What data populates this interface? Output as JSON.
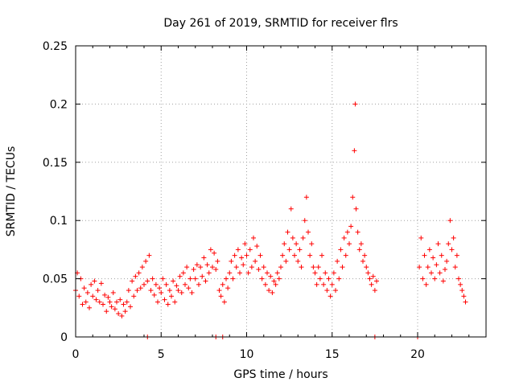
{
  "chart_data": {
    "type": "scatter",
    "title": "Day 261 of 2019, SRMTID for receiver flrs",
    "xlabel": "GPS time / hours",
    "ylabel": "SRMTID / TECUs",
    "xlim": [
      0,
      24
    ],
    "ylim": [
      0,
      0.25
    ],
    "xticks": [
      0,
      5,
      10,
      15,
      20
    ],
    "xtick_labels": [
      "0",
      "5",
      "10",
      "15",
      "20"
    ],
    "yticks": [
      0,
      0.05,
      0.1,
      0.15,
      0.2,
      0.25
    ],
    "ytick_labels": [
      "0",
      "0.05",
      "0.1",
      "0.15",
      "0.2",
      "0.25"
    ],
    "grid": true,
    "legend": "none",
    "marker": "+",
    "series_color": "#ff0000",
    "series": [
      {
        "values": [
          [
            0.0,
            0.04
          ],
          [
            0.1,
            0.055
          ],
          [
            0.2,
            0.035
          ],
          [
            0.3,
            0.05
          ],
          [
            0.4,
            0.028
          ],
          [
            0.5,
            0.042
          ],
          [
            0.6,
            0.03
          ],
          [
            0.7,
            0.038
          ],
          [
            0.8,
            0.025
          ],
          [
            0.9,
            0.045
          ],
          [
            1.0,
            0.035
          ],
          [
            1.1,
            0.048
          ],
          [
            1.2,
            0.032
          ],
          [
            1.3,
            0.04
          ],
          [
            1.4,
            0.03
          ],
          [
            1.5,
            0.046
          ],
          [
            1.6,
            0.028
          ],
          [
            1.7,
            0.036
          ],
          [
            1.8,
            0.022
          ],
          [
            1.9,
            0.034
          ],
          [
            2.0,
            0.03
          ],
          [
            2.1,
            0.026
          ],
          [
            2.2,
            0.038
          ],
          [
            2.3,
            0.024
          ],
          [
            2.4,
            0.03
          ],
          [
            2.5,
            0.02
          ],
          [
            2.6,
            0.032
          ],
          [
            2.7,
            0.018
          ],
          [
            2.8,
            0.028
          ],
          [
            2.9,
            0.022
          ],
          [
            3.0,
            0.03
          ],
          [
            3.1,
            0.04
          ],
          [
            3.2,
            0.026
          ],
          [
            3.3,
            0.048
          ],
          [
            3.4,
            0.035
          ],
          [
            3.5,
            0.052
          ],
          [
            3.6,
            0.04
          ],
          [
            3.7,
            0.055
          ],
          [
            3.8,
            0.042
          ],
          [
            3.9,
            0.06
          ],
          [
            4.0,
            0.045
          ],
          [
            4.1,
            0.065
          ],
          [
            4.2,
            0.048
          ],
          [
            4.3,
            0.07
          ],
          [
            4.4,
            0.04
          ],
          [
            4.5,
            0.05
          ],
          [
            4.6,
            0.036
          ],
          [
            4.7,
            0.045
          ],
          [
            4.8,
            0.03
          ],
          [
            4.9,
            0.042
          ],
          [
            5.0,
            0.038
          ],
          [
            5.1,
            0.05
          ],
          [
            5.2,
            0.032
          ],
          [
            5.3,
            0.045
          ],
          [
            5.4,
            0.028
          ],
          [
            5.5,
            0.04
          ],
          [
            5.6,
            0.035
          ],
          [
            5.7,
            0.048
          ],
          [
            5.8,
            0.03
          ],
          [
            5.9,
            0.044
          ],
          [
            6.0,
            0.04
          ],
          [
            6.1,
            0.052
          ],
          [
            6.2,
            0.038
          ],
          [
            6.3,
            0.055
          ],
          [
            6.4,
            0.045
          ],
          [
            6.5,
            0.06
          ],
          [
            6.6,
            0.042
          ],
          [
            6.7,
            0.05
          ],
          [
            6.8,
            0.038
          ],
          [
            6.9,
            0.058
          ],
          [
            7.0,
            0.05
          ],
          [
            7.1,
            0.062
          ],
          [
            7.2,
            0.045
          ],
          [
            7.3,
            0.06
          ],
          [
            7.4,
            0.052
          ],
          [
            7.5,
            0.068
          ],
          [
            7.6,
            0.048
          ],
          [
            7.7,
            0.062
          ],
          [
            7.8,
            0.055
          ],
          [
            7.9,
            0.075
          ],
          [
            8.0,
            0.06
          ],
          [
            8.1,
            0.072
          ],
          [
            8.2,
            0.058
          ],
          [
            8.3,
            0.065
          ],
          [
            8.4,
            0.04
          ],
          [
            8.5,
            0.035
          ],
          [
            8.6,
            0.045
          ],
          [
            8.7,
            0.03
          ],
          [
            8.8,
            0.05
          ],
          [
            8.9,
            0.042
          ],
          [
            9.0,
            0.055
          ],
          [
            9.1,
            0.065
          ],
          [
            9.2,
            0.05
          ],
          [
            9.3,
            0.07
          ],
          [
            9.4,
            0.06
          ],
          [
            9.5,
            0.075
          ],
          [
            9.6,
            0.055
          ],
          [
            9.7,
            0.068
          ],
          [
            9.8,
            0.062
          ],
          [
            9.9,
            0.08
          ],
          [
            10.0,
            0.07
          ],
          [
            10.1,
            0.055
          ],
          [
            10.2,
            0.075
          ],
          [
            10.3,
            0.06
          ],
          [
            10.4,
            0.085
          ],
          [
            10.5,
            0.065
          ],
          [
            10.6,
            0.078
          ],
          [
            10.7,
            0.058
          ],
          [
            10.8,
            0.07
          ],
          [
            10.9,
            0.05
          ],
          [
            11.0,
            0.06
          ],
          [
            11.1,
            0.045
          ],
          [
            11.2,
            0.055
          ],
          [
            11.3,
            0.04
          ],
          [
            11.4,
            0.052
          ],
          [
            11.5,
            0.038
          ],
          [
            11.6,
            0.048
          ],
          [
            11.7,
            0.045
          ],
          [
            11.8,
            0.055
          ],
          [
            11.9,
            0.05
          ],
          [
            12.0,
            0.06
          ],
          [
            12.1,
            0.07
          ],
          [
            12.2,
            0.08
          ],
          [
            12.3,
            0.065
          ],
          [
            12.4,
            0.09
          ],
          [
            12.5,
            0.075
          ],
          [
            12.6,
            0.11
          ],
          [
            12.7,
            0.085
          ],
          [
            12.8,
            0.07
          ],
          [
            12.9,
            0.08
          ],
          [
            13.0,
            0.065
          ],
          [
            13.1,
            0.075
          ],
          [
            13.2,
            0.06
          ],
          [
            13.3,
            0.085
          ],
          [
            13.4,
            0.1
          ],
          [
            13.5,
            0.12
          ],
          [
            13.6,
            0.09
          ],
          [
            13.7,
            0.07
          ],
          [
            13.8,
            0.08
          ],
          [
            13.9,
            0.06
          ],
          [
            14.0,
            0.055
          ],
          [
            14.1,
            0.045
          ],
          [
            14.2,
            0.06
          ],
          [
            14.3,
            0.05
          ],
          [
            14.4,
            0.07
          ],
          [
            14.5,
            0.045
          ],
          [
            14.6,
            0.055
          ],
          [
            14.7,
            0.04
          ],
          [
            14.8,
            0.05
          ],
          [
            14.9,
            0.035
          ],
          [
            15.0,
            0.045
          ],
          [
            15.1,
            0.055
          ],
          [
            15.2,
            0.04
          ],
          [
            15.3,
            0.065
          ],
          [
            15.4,
            0.05
          ],
          [
            15.5,
            0.075
          ],
          [
            15.6,
            0.06
          ],
          [
            15.7,
            0.085
          ],
          [
            15.8,
            0.07
          ],
          [
            15.9,
            0.09
          ],
          [
            16.0,
            0.08
          ],
          [
            16.1,
            0.095
          ],
          [
            16.2,
            0.12
          ],
          [
            16.3,
            0.16
          ],
          [
            16.35,
            0.2
          ],
          [
            16.4,
            0.11
          ],
          [
            16.5,
            0.09
          ],
          [
            16.6,
            0.075
          ],
          [
            16.7,
            0.08
          ],
          [
            16.8,
            0.065
          ],
          [
            16.9,
            0.07
          ],
          [
            17.0,
            0.06
          ],
          [
            17.1,
            0.055
          ],
          [
            17.2,
            0.05
          ],
          [
            17.3,
            0.045
          ],
          [
            17.4,
            0.052
          ],
          [
            17.5,
            0.04
          ],
          [
            17.6,
            0.048
          ],
          [
            20.1,
            0.06
          ],
          [
            20.2,
            0.085
          ],
          [
            20.3,
            0.05
          ],
          [
            20.4,
            0.07
          ],
          [
            20.5,
            0.045
          ],
          [
            20.6,
            0.06
          ],
          [
            20.7,
            0.075
          ],
          [
            20.8,
            0.055
          ],
          [
            20.9,
            0.068
          ],
          [
            21.0,
            0.05
          ],
          [
            21.1,
            0.062
          ],
          [
            21.2,
            0.08
          ],
          [
            21.3,
            0.055
          ],
          [
            21.4,
            0.07
          ],
          [
            21.5,
            0.048
          ],
          [
            21.6,
            0.058
          ],
          [
            21.7,
            0.065
          ],
          [
            21.8,
            0.08
          ],
          [
            21.9,
            0.1
          ],
          [
            22.0,
            0.075
          ],
          [
            22.1,
            0.085
          ],
          [
            22.2,
            0.06
          ],
          [
            22.3,
            0.07
          ],
          [
            22.4,
            0.05
          ],
          [
            22.5,
            0.045
          ],
          [
            22.6,
            0.04
          ],
          [
            22.7,
            0.035
          ],
          [
            22.8,
            0.03
          ]
        ]
      }
    ],
    "zero_markers_x": [
      4.2,
      8.2,
      8.6,
      17.5,
      20.0
    ]
  }
}
